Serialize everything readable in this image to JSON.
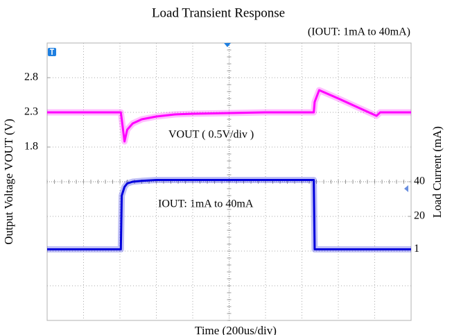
{
  "chart_data": {
    "type": "line",
    "title": "Load Transient Response",
    "subtitle": "(IOUT: 1mA to 40mA)",
    "x_label": "Time (200us/div)",
    "y_label": "Output Voltage VOUT (V)",
    "y2_label": "Load Current (mA)",
    "annotations": [
      "VOUT ( 0.5V/div )",
      "IOUT: 1mA to 40mA"
    ],
    "x": [
      0,
      405,
      410,
      425,
      440,
      470,
      520,
      600,
      700,
      800,
      1000,
      1200,
      1465,
      1470,
      1495,
      1600,
      1700,
      1810,
      1830,
      2000
    ],
    "xlim": [
      0,
      2000
    ],
    "ylim": [
      -0.7,
      3.3
    ],
    "yticks": [
      1.8,
      2.3,
      2.8
    ],
    "y2lim": [
      -40,
      120
    ],
    "y2ticks": [
      1,
      20,
      40
    ],
    "grid": true,
    "series": [
      {
        "color": "#ff00ff",
        "values": [
          2.3,
          2.3,
          2.2,
          1.88,
          2.05,
          2.14,
          2.2,
          2.24,
          2.27,
          2.28,
          2.29,
          2.3,
          2.3,
          2.45,
          2.62,
          2.5,
          2.38,
          2.25,
          2.3,
          2.3
        ]
      },
      {
        "color": "#0000dd",
        "axis": "y2",
        "values": [
          1,
          1,
          32,
          37,
          39,
          40,
          40.5,
          41,
          41,
          41,
          41,
          41,
          41,
          1,
          1,
          1,
          1,
          1,
          1,
          1
        ]
      }
    ]
  }
}
